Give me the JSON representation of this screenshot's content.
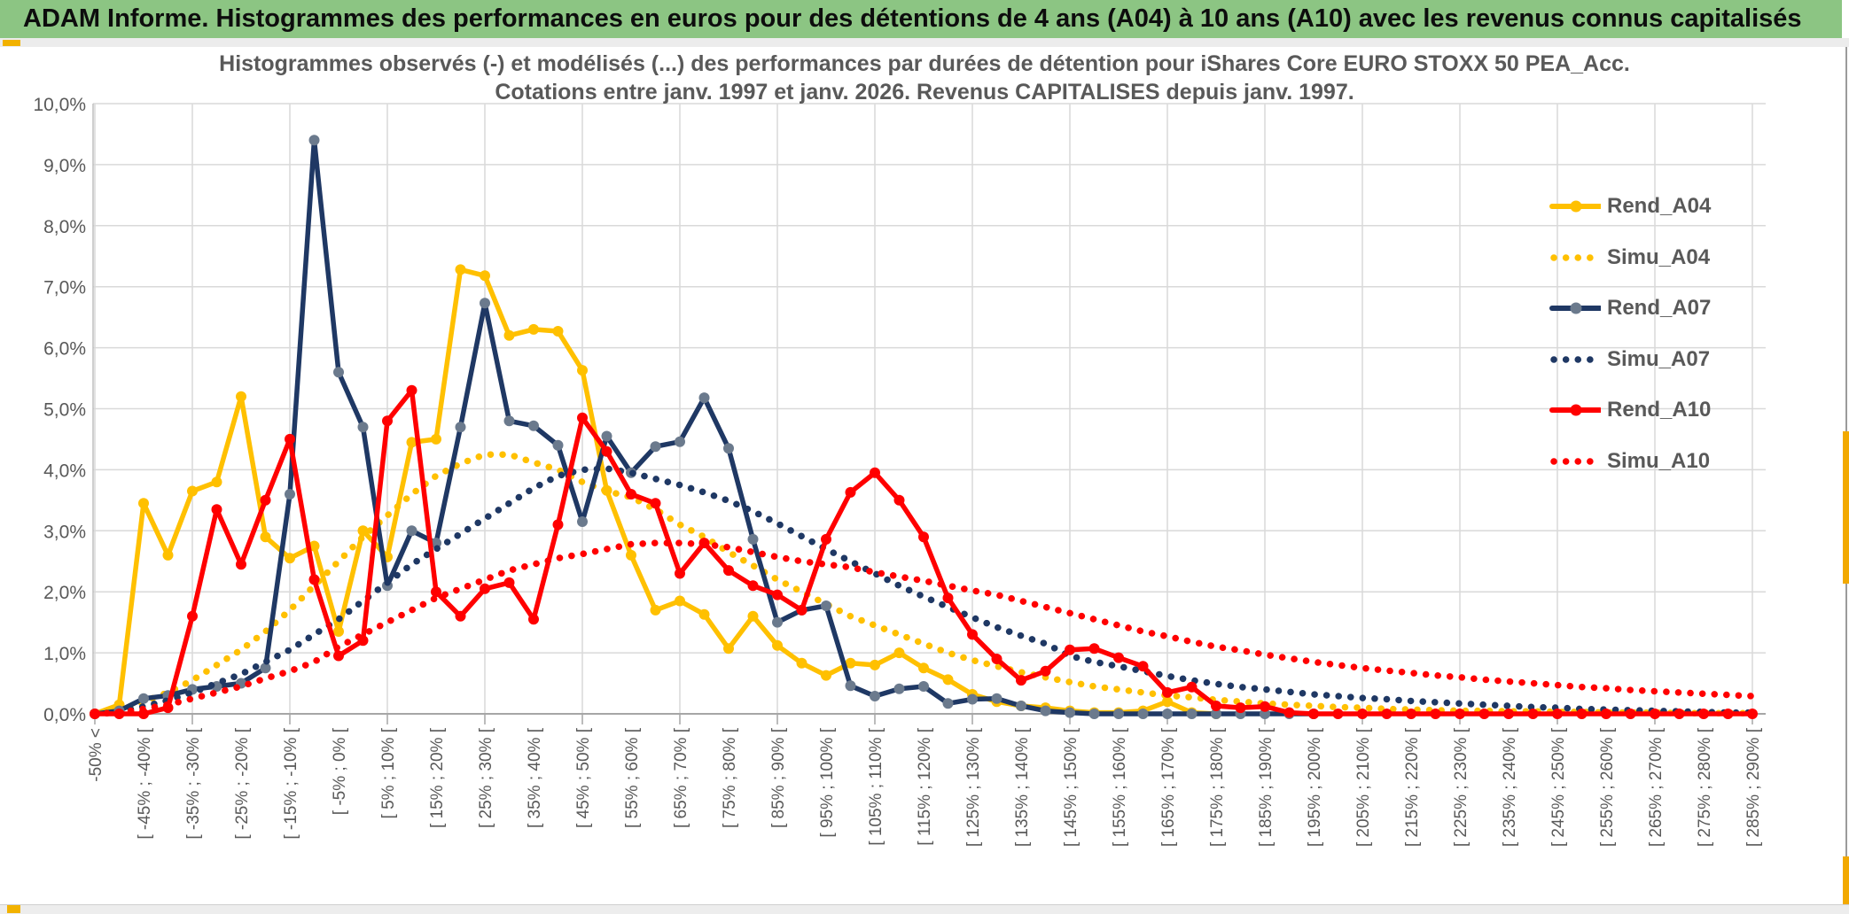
{
  "banner": {
    "title": "ADAM Informe. Histogrammes des performances en euros pour des détentions de 4 ans (A04) à 10 ans (A10) avec les revenus connus capitalisés"
  },
  "chart": {
    "title_line1": "Histogrammes observés (-) et modélisés (...) des performances par durées de détention pour iShares Core EURO STOXX 50 PEA_Acc.",
    "title_line2": "Cotations entre janv. 1997 et janv. 2026. Revenus CAPITALISES depuis janv. 1997."
  },
  "chart_data": {
    "type": "line",
    "title": "Histogrammes observés (-) et modélisés (...) des performances par durées de détention pour iShares Core EURO STOXX 50 PEA_Acc. Cotations entre janv. 1997 et janv. 2026. Revenus CAPITALISES depuis janv. 1997.",
    "xlabel": "",
    "ylabel": "",
    "ylim": [
      0,
      10
    ],
    "grid": true,
    "legend_position": "right",
    "y_tick_labels": [
      "0,0%",
      "1,0%",
      "2,0%",
      "3,0%",
      "4,0%",
      "5,0%",
      "6,0%",
      "7,0%",
      "8,0%",
      "9,0%",
      "10,0%"
    ],
    "x_tick_labels": [
      "-50% <",
      "[ -45% ; -40% [",
      "[ -35% ; -30% [",
      "[ -25% ; -20% [",
      "[ -15% ; -10% [",
      "[ -5% ; 0% [",
      "[ 5% ; 10% [",
      "[ 15% ; 20% [",
      "[ 25% ; 30% [",
      "[ 35% ; 40% [",
      "[ 45% ; 50% [",
      "[ 55% ; 60% [",
      "[ 65% ; 70% [",
      "[ 75% ; 80% [",
      "[ 85% ; 90% [",
      "[ 95% ; 100% [",
      "[ 105% ; 110% [",
      "[ 115% ; 120% [",
      "[ 125% ; 130% [",
      "[ 135% ; 140% [",
      "[ 145% ; 150% [",
      "[ 155% ; 160% [",
      "[ 165% ; 170% [",
      "[ 175% ; 180% [",
      "[ 185% ; 190% [",
      "[ 195% ; 200% [",
      "[ 205% ; 210% [",
      "[ 215% ; 220% [",
      "[ 225% ; 230% [",
      "[ 235% ; 240% [",
      "[ 245% ; 250% [",
      "[ 255% ; 260% [",
      "[ 265% ; 270% [",
      "[ 275% ; 280% [",
      "[ 285% ; 290% ["
    ],
    "bin_width_percent": 5,
    "bins_total": 69,
    "series": [
      {
        "name": "Rend_A04",
        "style": "solid",
        "color": "#FFC000",
        "marker_color": "#FFC000",
        "values": [
          0,
          0.15,
          3.45,
          2.6,
          3.65,
          3.8,
          5.2,
          2.9,
          2.55,
          2.75,
          1.35,
          3.0,
          2.57,
          4.45,
          4.5,
          7.28,
          7.18,
          6.2,
          6.3,
          6.27,
          5.63,
          3.66,
          2.6,
          1.7,
          1.85,
          1.63,
          1.07,
          1.6,
          1.12,
          0.83,
          0.63,
          0.83,
          0.8,
          1.0,
          0.75,
          0.56,
          0.32,
          0.2,
          0.13,
          0.1,
          0.05,
          0.02,
          0.02,
          0.05,
          0.2,
          0.02,
          0,
          null,
          null,
          null,
          null,
          null,
          null,
          null,
          null,
          null,
          null,
          null,
          null,
          null,
          null,
          null,
          null,
          null,
          null,
          null,
          null,
          null,
          null
        ]
      },
      {
        "name": "Simu_A04",
        "style": "dotted",
        "color": "#FFC000",
        "values": [
          0,
          0.05,
          0.2,
          0.35,
          0.55,
          0.8,
          1.05,
          1.35,
          1.7,
          2.1,
          2.5,
          2.9,
          3.25,
          3.6,
          3.9,
          4.1,
          4.25,
          4.25,
          4.12,
          4.0,
          3.8,
          3.65,
          3.55,
          3.35,
          3.1,
          2.9,
          2.65,
          2.43,
          2.2,
          2.0,
          1.8,
          1.6,
          1.45,
          1.3,
          1.15,
          1.0,
          0.88,
          0.78,
          0.68,
          0.6,
          0.52,
          0.45,
          0.4,
          0.35,
          0.3,
          0.27,
          0.23,
          0.2,
          0.17,
          0.15,
          0.13,
          0.11,
          0.1,
          0.08,
          0.07,
          0.06,
          0.05,
          0.05,
          0.04,
          0.04,
          0.03,
          0.03,
          0.02,
          0.02,
          0.02,
          0.01,
          0.01,
          0.01,
          0.01
        ]
      },
      {
        "name": "Rend_A07",
        "style": "solid",
        "color": "#1F3864",
        "marker_color": "#6b7a8d",
        "values": [
          0,
          0.05,
          0.25,
          0.3,
          0.4,
          0.45,
          0.5,
          0.75,
          3.6,
          9.4,
          5.6,
          4.7,
          2.1,
          3.0,
          2.8,
          4.7,
          6.73,
          4.8,
          4.72,
          4.4,
          3.15,
          4.55,
          3.95,
          4.38,
          4.46,
          5.18,
          4.35,
          2.86,
          1.5,
          1.7,
          1.77,
          0.46,
          0.29,
          0.41,
          0.45,
          0.17,
          0.24,
          0.25,
          0.13,
          0.05,
          0.02,
          0,
          0,
          0,
          0,
          0,
          0,
          0,
          0,
          0,
          0,
          null,
          null,
          null,
          null,
          null,
          null,
          null,
          null,
          null,
          null,
          null,
          null,
          null,
          null,
          null,
          null,
          null,
          null
        ]
      },
      {
        "name": "Simu_A07",
        "style": "dotted",
        "color": "#1F3864",
        "values": [
          0,
          0.03,
          0.12,
          0.22,
          0.35,
          0.5,
          0.65,
          0.85,
          1.05,
          1.3,
          1.55,
          1.85,
          2.15,
          2.45,
          2.7,
          2.95,
          3.2,
          3.45,
          3.7,
          3.9,
          4.0,
          4.02,
          3.95,
          3.85,
          3.75,
          3.63,
          3.49,
          3.32,
          3.12,
          2.91,
          2.7,
          2.5,
          2.3,
          2.1,
          1.92,
          1.75,
          1.58,
          1.42,
          1.28,
          1.15,
          0.95,
          0.85,
          0.78,
          0.7,
          0.62,
          0.55,
          0.49,
          0.44,
          0.4,
          0.36,
          0.32,
          0.29,
          0.26,
          0.24,
          0.21,
          0.19,
          0.17,
          0.15,
          0.13,
          0.11,
          0.1,
          0.08,
          0.07,
          0.06,
          0.05,
          0.04,
          0.03,
          0.02,
          0.02
        ]
      },
      {
        "name": "Rend_A10",
        "style": "solid",
        "color": "#FF0000",
        "marker_color": "#FF0000",
        "values": [
          0,
          0,
          0,
          0.1,
          1.6,
          3.35,
          2.45,
          3.5,
          4.5,
          2.2,
          0.95,
          1.2,
          4.8,
          5.3,
          2.0,
          1.6,
          2.05,
          2.15,
          1.55,
          3.1,
          4.85,
          4.3,
          3.6,
          3.45,
          2.3,
          2.8,
          2.35,
          2.1,
          1.95,
          1.7,
          2.86,
          3.63,
          3.95,
          3.5,
          2.9,
          1.9,
          1.3,
          0.9,
          0.55,
          0.7,
          1.05,
          1.07,
          0.92,
          0.78,
          0.35,
          0.44,
          0.13,
          0.1,
          0.12,
          0.02,
          0,
          0,
          0,
          0,
          0,
          0,
          0,
          0,
          0,
          0,
          0,
          0,
          0,
          0,
          0,
          0,
          0,
          0,
          0
        ]
      },
      {
        "name": "Simu_A10",
        "style": "dotted",
        "color": "#FF0000",
        "values": [
          0,
          0.02,
          0.08,
          0.15,
          0.25,
          0.35,
          0.45,
          0.58,
          0.7,
          0.85,
          1.1,
          1.3,
          1.5,
          1.7,
          1.9,
          2.05,
          2.2,
          2.35,
          2.45,
          2.55,
          2.62,
          2.7,
          2.78,
          2.8,
          2.8,
          2.78,
          2.73,
          2.65,
          2.57,
          2.5,
          2.45,
          2.4,
          2.32,
          2.25,
          2.18,
          2.1,
          2.02,
          1.95,
          1.85,
          1.75,
          1.65,
          1.55,
          1.45,
          1.35,
          1.27,
          1.18,
          1.1,
          1.04,
          0.97,
          0.91,
          0.85,
          0.8,
          0.75,
          0.71,
          0.67,
          0.63,
          0.6,
          0.56,
          0.53,
          0.5,
          0.47,
          0.44,
          0.42,
          0.39,
          0.37,
          0.35,
          0.33,
          0.31,
          0.29
        ]
      }
    ]
  }
}
